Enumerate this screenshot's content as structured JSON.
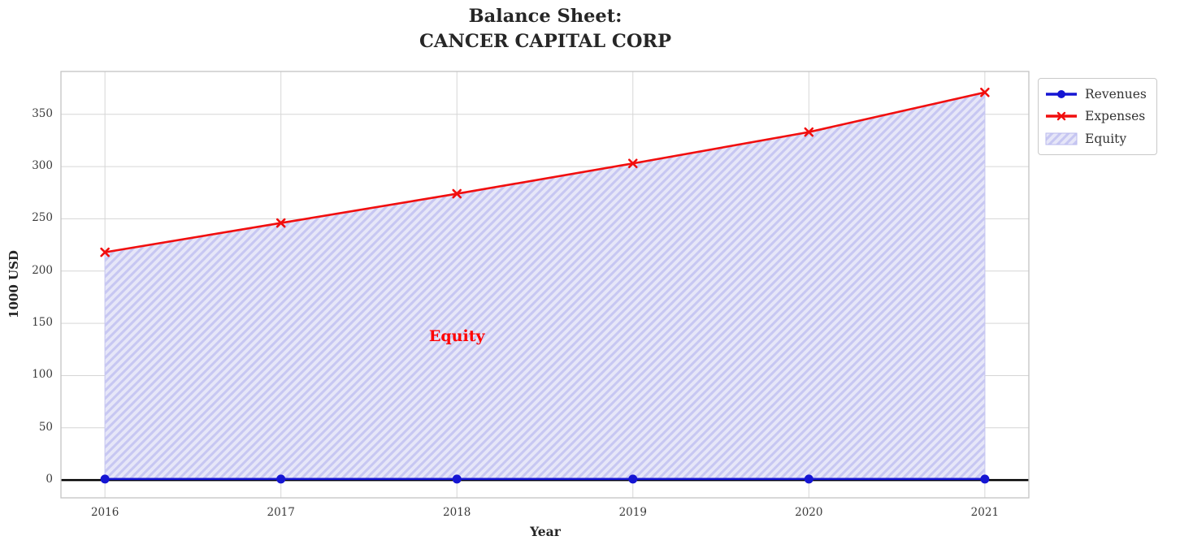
{
  "title": {
    "line1": "Balance Sheet:",
    "line2": "CANCER CAPITAL CORP"
  },
  "chart_data": {
    "type": "line",
    "x": [
      2016,
      2017,
      2018,
      2019,
      2020,
      2021
    ],
    "series": [
      {
        "name": "Revenues",
        "values": [
          1,
          1,
          1,
          1,
          1,
          1
        ],
        "color": "#1515d3",
        "marker": "circle"
      },
      {
        "name": "Expenses",
        "values": [
          218,
          246,
          274,
          303,
          333,
          371
        ],
        "color": "#f10e0e",
        "marker": "x"
      }
    ],
    "area": {
      "name": "Equity",
      "between": [
        "Revenues",
        "Expenses"
      ],
      "fill": "#e6e6f8",
      "hatch_color": "#c7c7f2",
      "hatch": "/"
    },
    "annotation": {
      "text": "Equity",
      "x": 2018,
      "y": 138,
      "color": "#ff0000"
    },
    "xlabel": "Year",
    "ylabel": "1000 USD",
    "xticks": [
      2016,
      2017,
      2018,
      2019,
      2020,
      2021
    ],
    "yticks": [
      0,
      50,
      100,
      150,
      200,
      250,
      300,
      350
    ],
    "xlim": [
      2015.75,
      2021.25
    ],
    "ylim": [
      -17,
      391
    ],
    "grid": true,
    "zero_line": true,
    "background": "#ffffff",
    "legend_position": "outside-top-right",
    "colors": {
      "grid": "#d6d6d6",
      "border": "#c4c4c4",
      "tick_text": "#3a3a3a",
      "title_text": "#262626",
      "zero_line": "#000000"
    }
  },
  "legend": {
    "entries": [
      {
        "label": "Revenues",
        "swatch": "line-circle",
        "color": "#1515d3"
      },
      {
        "label": "Expenses",
        "swatch": "line-x",
        "color": "#f10e0e"
      },
      {
        "label": "Equity",
        "swatch": "hatch-patch",
        "color": "#c7c7f2"
      }
    ]
  }
}
